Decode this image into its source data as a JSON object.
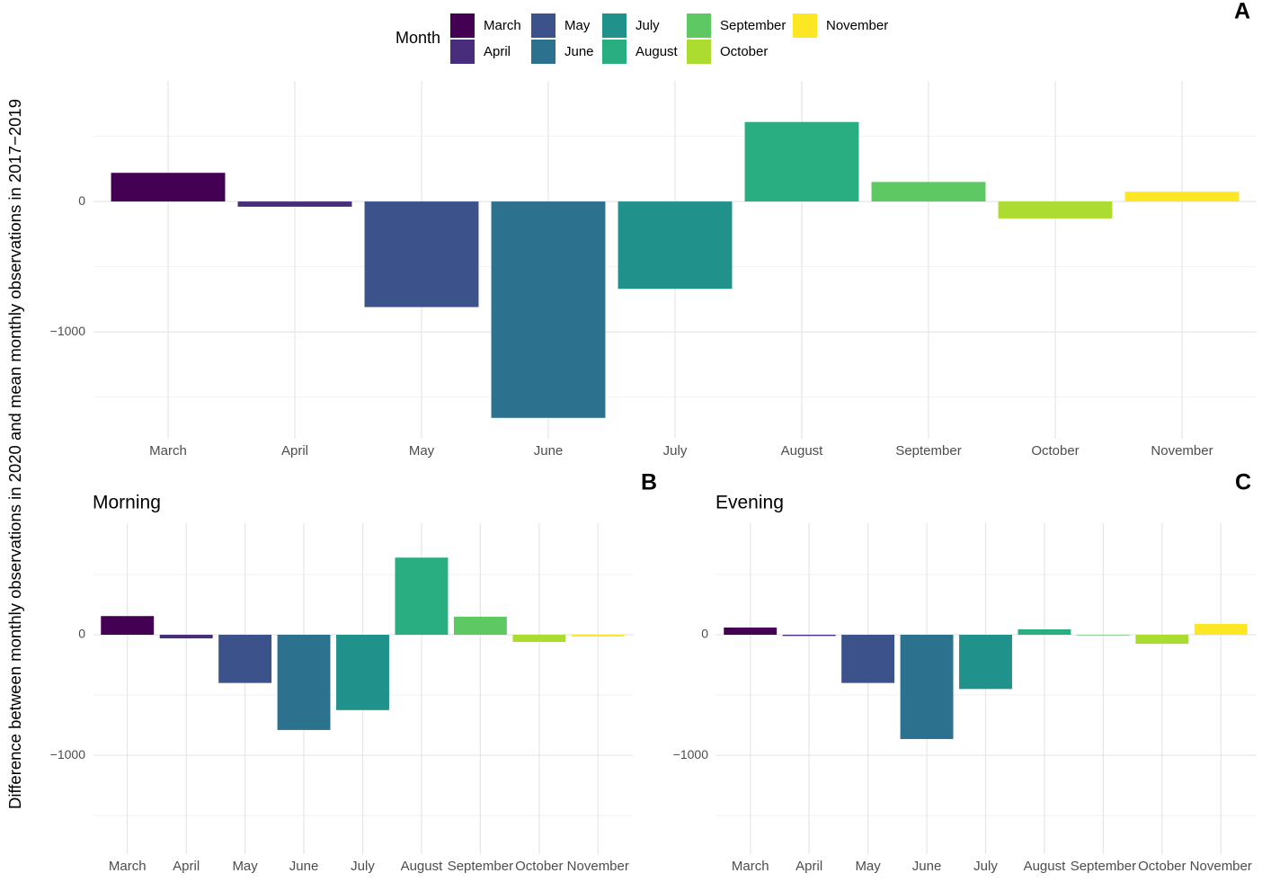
{
  "legend": {
    "title": "Month",
    "items": [
      {
        "name": "March",
        "color": "#440154"
      },
      {
        "name": "April",
        "color": "#472d7b"
      },
      {
        "name": "May",
        "color": "#3b528b"
      },
      {
        "name": "June",
        "color": "#2c728e"
      },
      {
        "name": "July",
        "color": "#21918c"
      },
      {
        "name": "August",
        "color": "#28ae80"
      },
      {
        "name": "September",
        "color": "#5ec962"
      },
      {
        "name": "October",
        "color": "#addc30"
      },
      {
        "name": "November",
        "color": "#fde725"
      }
    ]
  },
  "y_label": "Difference between monthly observations in 2020 and mean monthly observations in 2017−2019",
  "chart_data": [
    {
      "type": "bar",
      "panel": "A",
      "categories": [
        "March",
        "April",
        "May",
        "June",
        "July",
        "August",
        "September",
        "October",
        "November"
      ],
      "values": [
        220,
        -40,
        -810,
        -1660,
        -670,
        610,
        150,
        -130,
        75
      ],
      "ylim": [
        -1820,
        925
      ],
      "yticks": [
        {
          "value": -1000,
          "label": "−1000"
        },
        0
      ],
      "minor_yticks": [
        -1500,
        -500,
        500
      ],
      "grid": true
    },
    {
      "type": "bar",
      "panel": "B",
      "title": "Morning",
      "categories": [
        "March",
        "April",
        "May",
        "June",
        "July",
        "August",
        "September",
        "October",
        "November"
      ],
      "values": [
        155,
        -30,
        -400,
        -790,
        -625,
        640,
        150,
        -60,
        -15
      ],
      "ylim": [
        -1820,
        925
      ],
      "yticks": [
        {
          "value": -1000,
          "label": "−1000"
        },
        0
      ],
      "minor_yticks": [
        -1500,
        -500,
        500
      ],
      "grid": true
    },
    {
      "type": "bar",
      "panel": "C",
      "title": "Evening",
      "categories": [
        "March",
        "April",
        "May",
        "June",
        "July",
        "August",
        "September",
        "October",
        "November"
      ],
      "values": [
        60,
        -10,
        -400,
        -865,
        -450,
        45,
        -5,
        -75,
        90
      ],
      "ylim": [
        -1820,
        925
      ],
      "yticks": [
        {
          "value": -1000,
          "label": "−1000"
        },
        0
      ],
      "minor_yticks": [
        -1500,
        -500,
        500
      ],
      "grid": true
    }
  ]
}
